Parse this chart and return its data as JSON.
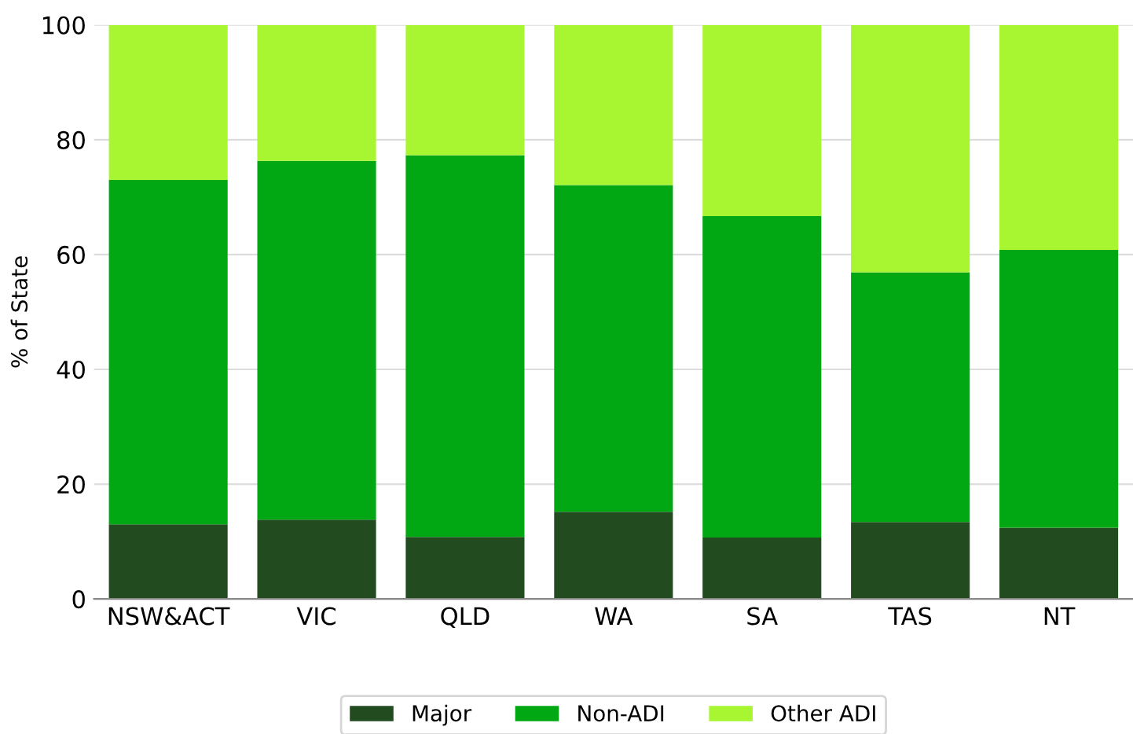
{
  "chart_data": {
    "type": "bar",
    "stacked": true,
    "ylabel": "% of State",
    "categories": [
      "NSW&ACT",
      "VIC",
      "QLD",
      "WA",
      "SA",
      "TAS",
      "NT"
    ],
    "series": [
      {
        "name": "Major",
        "color": "#224b1f",
        "values": [
          13.0,
          13.8,
          10.8,
          15.2,
          10.7,
          13.4,
          12.4
        ]
      },
      {
        "name": "Non-ADI",
        "color": "#02a814",
        "values": [
          60.0,
          62.5,
          66.5,
          56.9,
          56.0,
          43.5,
          48.4
        ]
      },
      {
        "name": "Other ADI",
        "color": "#a8f532",
        "values": [
          27.0,
          23.7,
          22.7,
          27.9,
          33.3,
          43.1,
          39.2
        ]
      }
    ],
    "ylim": [
      0,
      100
    ],
    "yticks": [
      0,
      20,
      40,
      60,
      80,
      100
    ],
    "grid": "y",
    "legend": "bottom"
  }
}
